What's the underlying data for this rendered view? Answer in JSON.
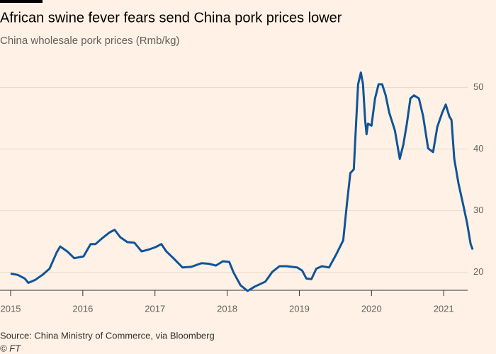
{
  "chart_data": {
    "type": "line",
    "title": "African swine fever fears send China pork prices lower",
    "subtitle": "China wholesale pork prices (Rmb/kg)",
    "source": "Source: China Ministry of Commerce, via Bloomberg",
    "credit": "© FT",
    "xlim": [
      2015,
      2021.45
    ],
    "xticks": [
      2015,
      2016,
      2017,
      2018,
      2019,
      2020,
      2021
    ],
    "ylim": [
      17.1,
      54.4
    ],
    "yticks": [
      20,
      30,
      40,
      50
    ],
    "grid": true,
    "series": [
      {
        "color": "#0f5499",
        "x": [
          2015.0,
          2015.098,
          2015.196,
          2015.245,
          2015.343,
          2015.441,
          2015.539,
          2015.637,
          2015.686,
          2015.784,
          2015.882,
          2016.01,
          2016.108,
          2016.176,
          2016.275,
          2016.373,
          2016.441,
          2016.52,
          2016.618,
          2016.716,
          2016.814,
          2016.912,
          2017.01,
          2017.088,
          2017.157,
          2017.255,
          2017.382,
          2017.5,
          2017.647,
          2017.745,
          2017.843,
          2017.941,
          2018.029,
          2018.088,
          2018.186,
          2018.284,
          2018.382,
          2018.529,
          2018.627,
          2018.725,
          2018.824,
          2018.971,
          2019.039,
          2019.098,
          2019.167,
          2019.235,
          2019.314,
          2019.412,
          2019.51,
          2019.608,
          2019.657,
          2019.706,
          2019.755,
          2019.784,
          2019.814,
          2019.853,
          2019.882,
          2019.912,
          2019.931,
          2019.951,
          2020.0,
          2020.049,
          2020.098,
          2020.147,
          2020.196,
          2020.245,
          2020.324,
          2020.392,
          2020.441,
          2020.49,
          2020.539,
          2020.588,
          2020.657,
          2020.716,
          2020.784,
          2020.853,
          2020.912,
          2020.98,
          2021.029,
          2021.078,
          2021.108,
          2021.147,
          2021.206,
          2021.275,
          2021.324,
          2021.373,
          2021.402
        ],
        "values": [
          19.8,
          19.6,
          19.0,
          18.3,
          18.8,
          19.6,
          20.6,
          23.2,
          24.2,
          23.4,
          22.3,
          22.6,
          24.6,
          24.6,
          25.6,
          26.5,
          26.9,
          25.7,
          24.9,
          24.8,
          23.4,
          23.7,
          24.1,
          24.6,
          23.4,
          22.3,
          20.8,
          20.9,
          21.5,
          21.4,
          21.1,
          21.8,
          21.7,
          20.0,
          17.9,
          17.0,
          17.7,
          18.5,
          20.1,
          21.0,
          21.0,
          20.8,
          20.3,
          19.0,
          18.9,
          20.6,
          21.0,
          20.8,
          22.9,
          25.2,
          30.9,
          36.1,
          36.7,
          43.6,
          50.5,
          52.4,
          50.5,
          44.7,
          42.4,
          44.1,
          43.8,
          48.2,
          50.5,
          50.5,
          48.7,
          45.9,
          43.0,
          38.4,
          40.7,
          44.1,
          48.2,
          48.7,
          48.2,
          45.3,
          40.1,
          39.5,
          43.6,
          45.9,
          47.2,
          45.3,
          44.7,
          38.4,
          34.4,
          30.7,
          28.0,
          24.6,
          23.7
        ]
      }
    ]
  }
}
